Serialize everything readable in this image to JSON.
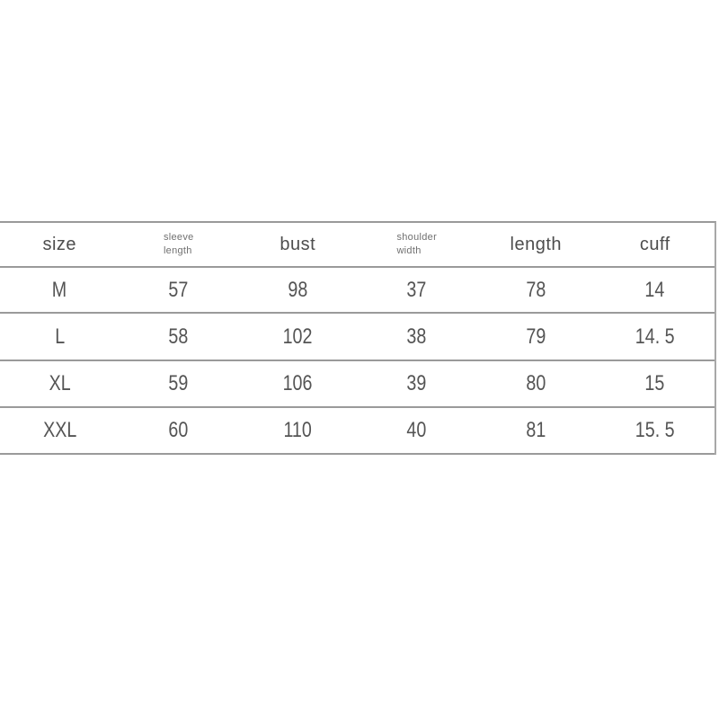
{
  "chart_data": {
    "type": "table",
    "columns": [
      "size",
      "sleeve length",
      "bust",
      "shoulder width",
      "length",
      "cuff"
    ],
    "rows": [
      [
        "M",
        "57",
        "98",
        "37",
        "78",
        "14"
      ],
      [
        "L",
        "58",
        "102",
        "38",
        "79",
        "14. 5"
      ],
      [
        "XL",
        "59",
        "106",
        "39",
        "80",
        "15"
      ],
      [
        "XXL",
        "60",
        "110",
        "40",
        "81",
        "15. 5"
      ]
    ]
  },
  "table": {
    "header": {
      "size": "size",
      "sleeve_length": [
        "sleeve",
        "length"
      ],
      "bust": "bust",
      "shoulder_width": [
        "shoulder",
        "width"
      ],
      "length": "length",
      "cuff": "cuff"
    },
    "rows": [
      {
        "size": "M",
        "sleeve_length": "57",
        "bust": "98",
        "shoulder_width": "37",
        "length": "78",
        "cuff": "14"
      },
      {
        "size": "L",
        "sleeve_length": "58",
        "bust": "102",
        "shoulder_width": "38",
        "length": "79",
        "cuff": "14. 5"
      },
      {
        "size": "XL",
        "sleeve_length": "59",
        "bust": "106",
        "shoulder_width": "39",
        "length": "80",
        "cuff": "15"
      },
      {
        "size": "XXL",
        "sleeve_length": "60",
        "bust": "110",
        "shoulder_width": "40",
        "length": "81",
        "cuff": "15. 5"
      }
    ],
    "colors": {
      "line": "#9a9a9a",
      "header_text": "#4d4d4d",
      "small_header_text": "#707070",
      "value_text": "#545454",
      "background": "#ffffff"
    }
  }
}
